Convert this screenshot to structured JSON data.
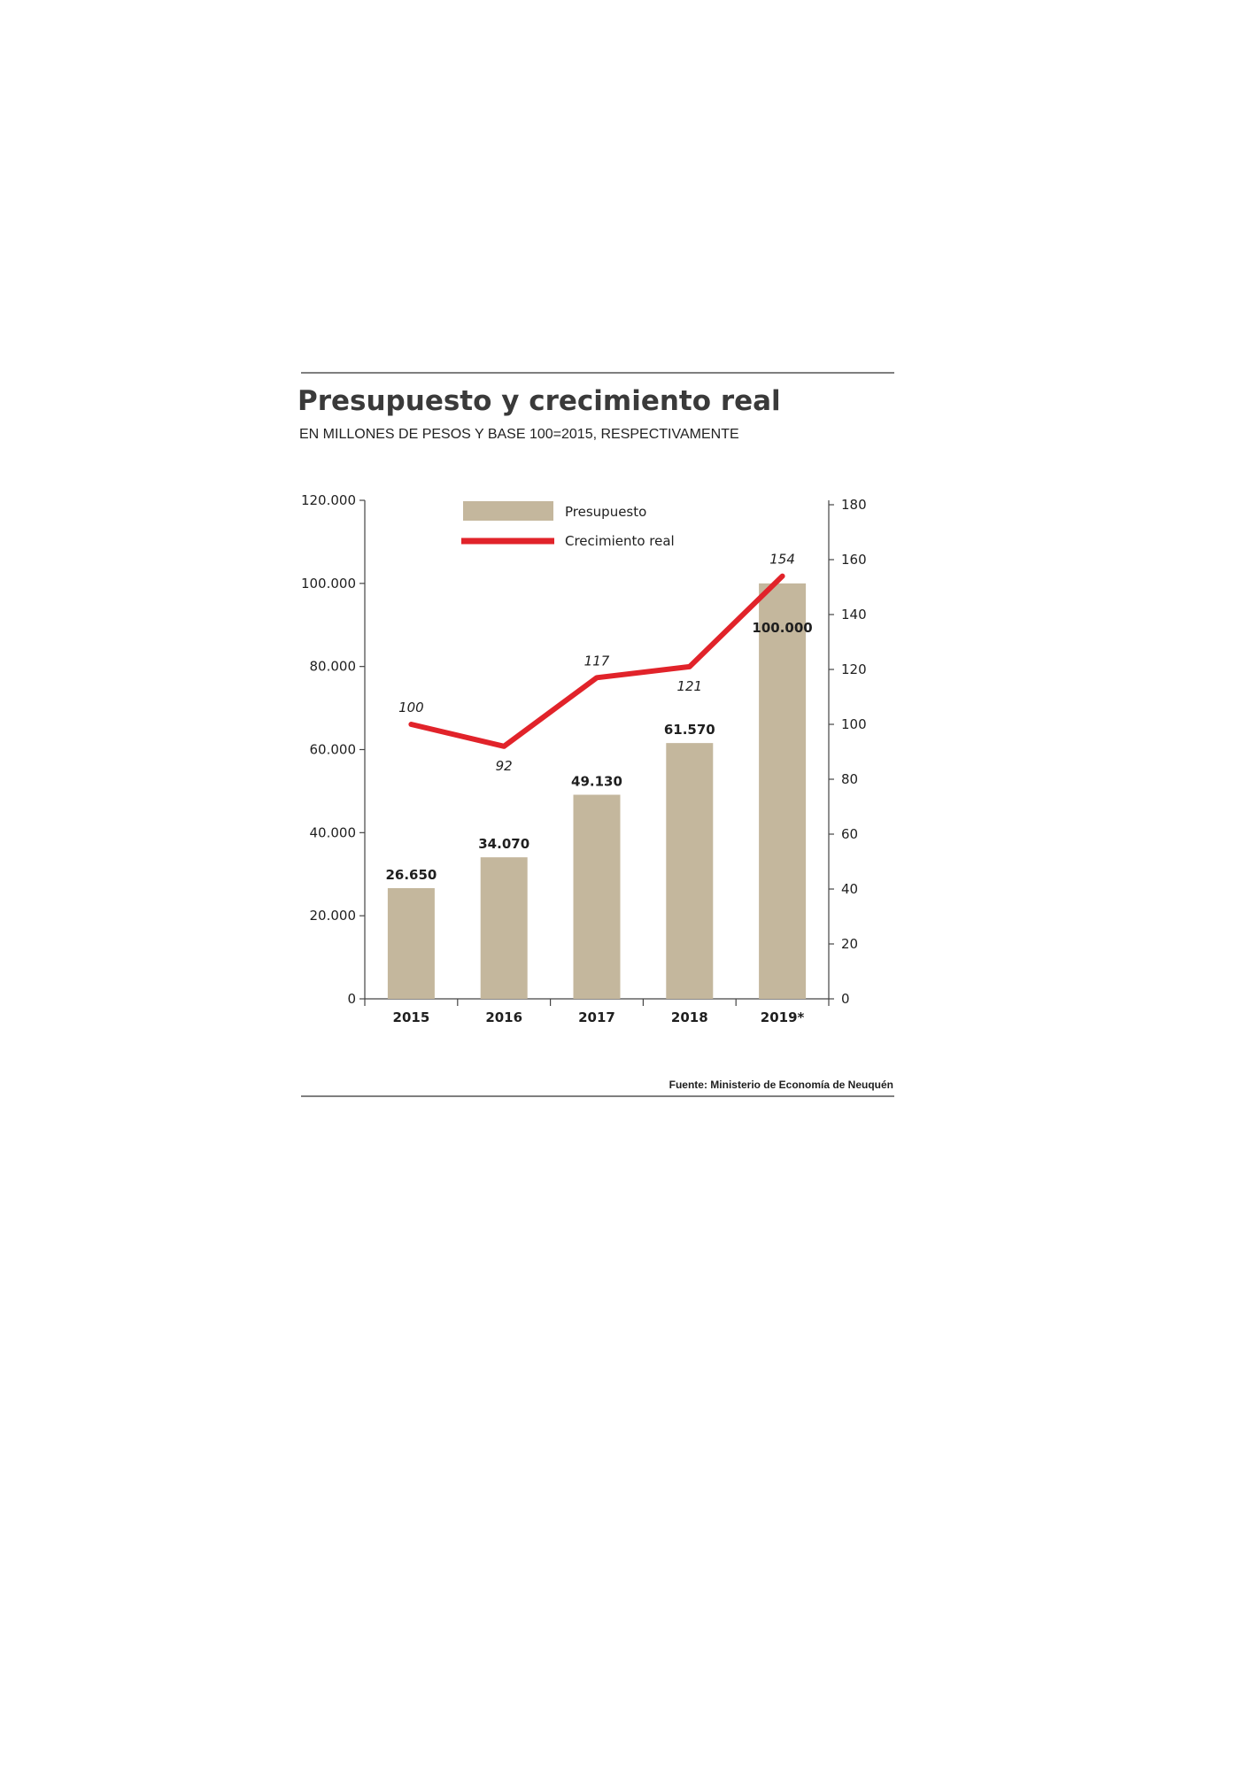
{
  "chart_data": {
    "type": "bar",
    "title": "Presupuesto y crecimiento real",
    "subtitle": "EN MILLONES DE PESOS Y BASE 100=2015, RESPECTIVAMENTE",
    "source": "Fuente: Ministerio de Economía de Neuquén",
    "categories": [
      "2015",
      "2016",
      "2017",
      "2018",
      "2019*"
    ],
    "bar_series": {
      "name": "Presupuesto",
      "values": [
        26650,
        34070,
        49130,
        61570,
        100000
      ],
      "labels": [
        "26.650",
        "34.070",
        "49.130",
        "61.570",
        "100.000"
      ],
      "color": "#c4b79d"
    },
    "line_series": {
      "name": "Crecimiento real",
      "values": [
        100,
        92,
        117,
        121,
        154
      ],
      "labels": [
        "100",
        "92",
        "117",
        "121",
        "154"
      ],
      "color": "#e1232a"
    },
    "y_left": {
      "ylim": [
        0,
        120000
      ],
      "ticks": [
        0,
        20000,
        40000,
        60000,
        80000,
        100000,
        120000
      ],
      "tick_labels": [
        "0",
        "20.000",
        "40.000",
        "60.000",
        "80.000",
        "100.000",
        "120.000"
      ]
    },
    "y_right": {
      "ylim": [
        0,
        180
      ],
      "ticks": [
        0,
        20,
        40,
        60,
        80,
        100,
        120,
        140,
        160,
        180
      ],
      "tick_labels": [
        "0",
        "20",
        "40",
        "60",
        "80",
        "100",
        "120",
        "140",
        "160",
        "180"
      ]
    },
    "legend": {
      "position": "top",
      "entries": [
        "Presupuesto",
        "Crecimiento real"
      ]
    },
    "grid": false
  }
}
